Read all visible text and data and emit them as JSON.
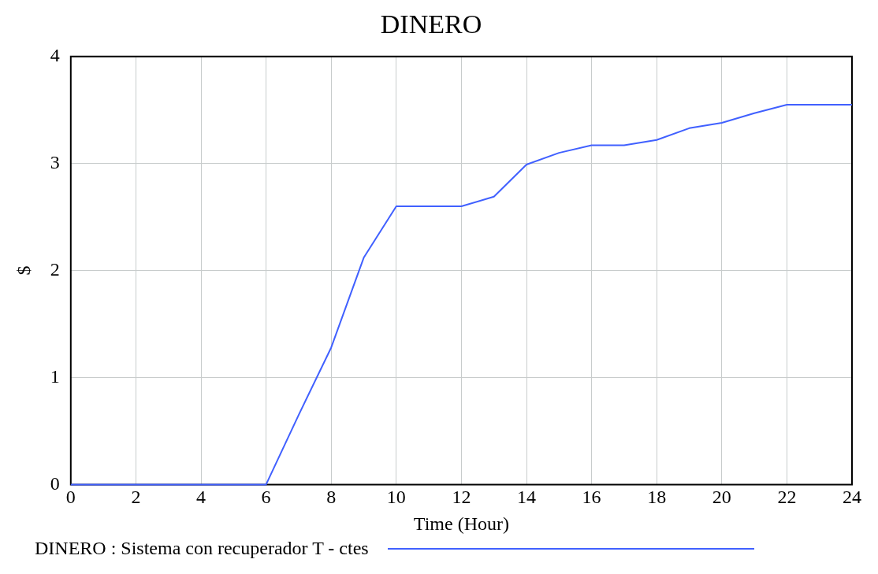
{
  "chart_data": {
    "type": "line",
    "title": "DINERO",
    "xlabel": "Time (Hour)",
    "ylabel": "$",
    "x": [
      0,
      1,
      2,
      3,
      4,
      5,
      6,
      7,
      8,
      9,
      10,
      11,
      12,
      13,
      14,
      15,
      16,
      17,
      18,
      19,
      20,
      21,
      22,
      23,
      24
    ],
    "series": [
      {
        "name": "DINERO : Sistema con recuperador T - ctes",
        "color": "#4060ff",
        "values": [
          0,
          0,
          0,
          0,
          0,
          0,
          0,
          0.65,
          1.28,
          2.12,
          2.6,
          2.6,
          2.6,
          2.69,
          2.99,
          3.1,
          3.17,
          3.17,
          3.22,
          3.33,
          3.38,
          3.47,
          3.55,
          3.55,
          3.55
        ]
      }
    ],
    "xlim": [
      0,
      24
    ],
    "xticks": [
      0,
      2,
      4,
      6,
      8,
      10,
      12,
      14,
      16,
      18,
      20,
      22,
      24
    ],
    "ylim": [
      0,
      4
    ],
    "yticks": [
      0,
      1,
      2,
      3,
      4
    ],
    "grid": true,
    "legend": "bottom",
    "marker": "none",
    "line_style": "solid"
  }
}
